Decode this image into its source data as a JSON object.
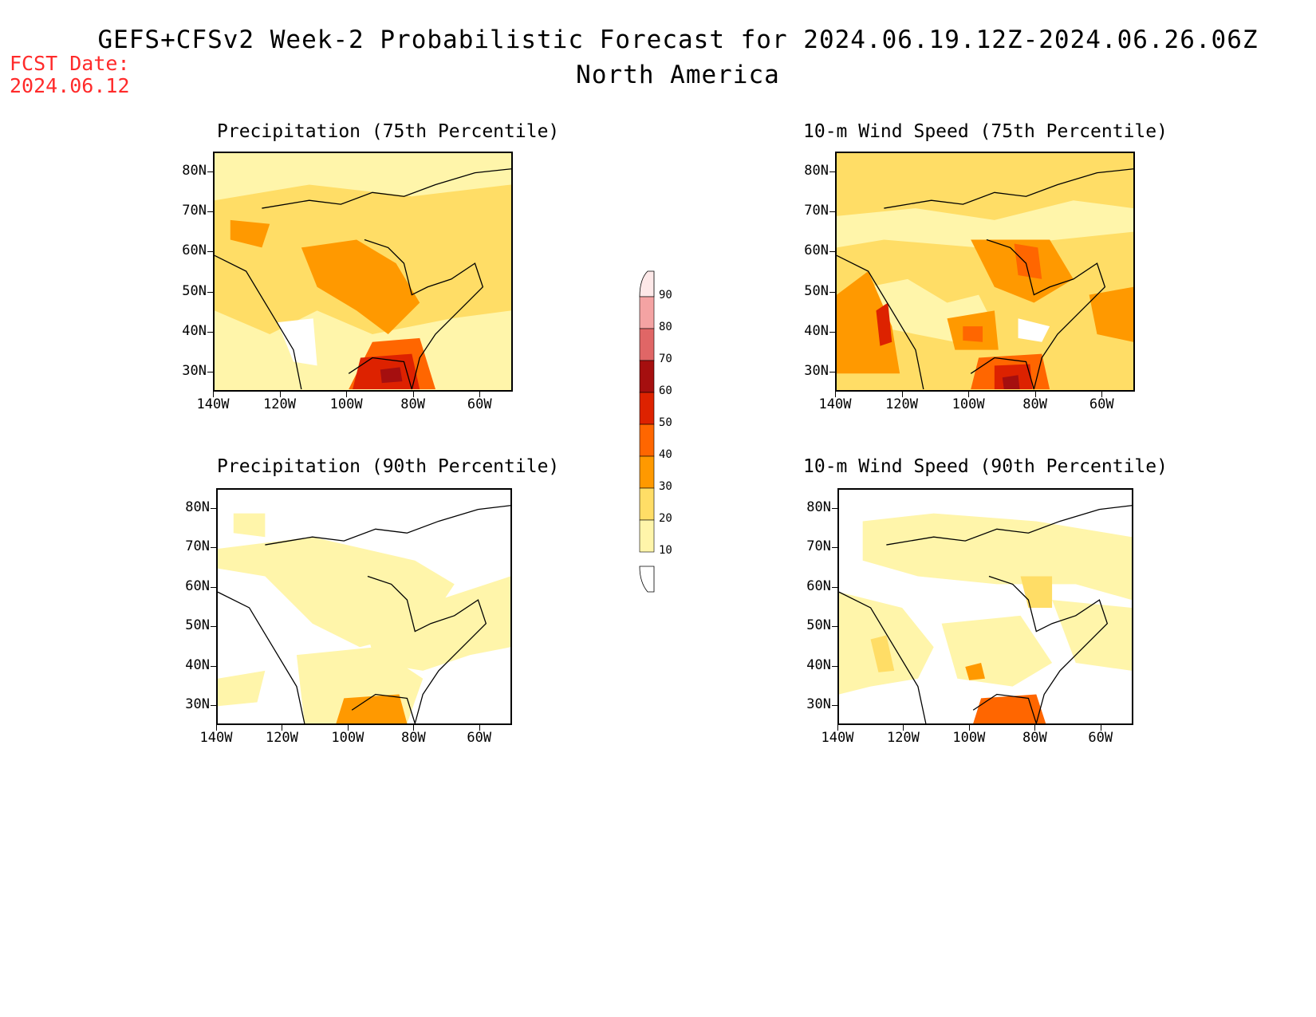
{
  "header": {
    "title": "GEFS+CFSv2 Week-2 Probabilistic Forecast for 2024.06.19.12Z-2024.06.26.06Z",
    "subtitle": "North America",
    "fcst_label": "FCST Date:",
    "fcst_date": "2024.06.12"
  },
  "axes": {
    "lat_labels": [
      "80N",
      "70N",
      "60N",
      "50N",
      "40N",
      "30N"
    ],
    "lon_labels": [
      "140W",
      "120W",
      "100W",
      "80W",
      "60W"
    ]
  },
  "panels": [
    {
      "id": "precip75",
      "title": "Precipitation (75th Percentile)",
      "base_category": "10-20",
      "dominant": "20-30"
    },
    {
      "id": "wind75",
      "title": "10-m Wind Speed (75th Percentile)",
      "base_category": "10-20",
      "dominant": "20-30"
    },
    {
      "id": "precip90",
      "title": "Precipitation (90th Percentile)",
      "base_category": "<10",
      "dominant": "10-20"
    },
    {
      "id": "wind90",
      "title": "10-m Wind Speed (90th Percentile)",
      "base_category": "<10",
      "dominant": "10-20"
    }
  ],
  "colorbar": {
    "labels": [
      "90",
      "80",
      "70",
      "60",
      "50",
      "40",
      "30",
      "20",
      "10"
    ],
    "colors": [
      "#fde8e8",
      "#f4a3a3",
      "#e06666",
      "#a50f0f",
      "#dd2200",
      "#ff6600",
      "#ff9900",
      "#ffdd66",
      "#fff5aa"
    ]
  }
}
